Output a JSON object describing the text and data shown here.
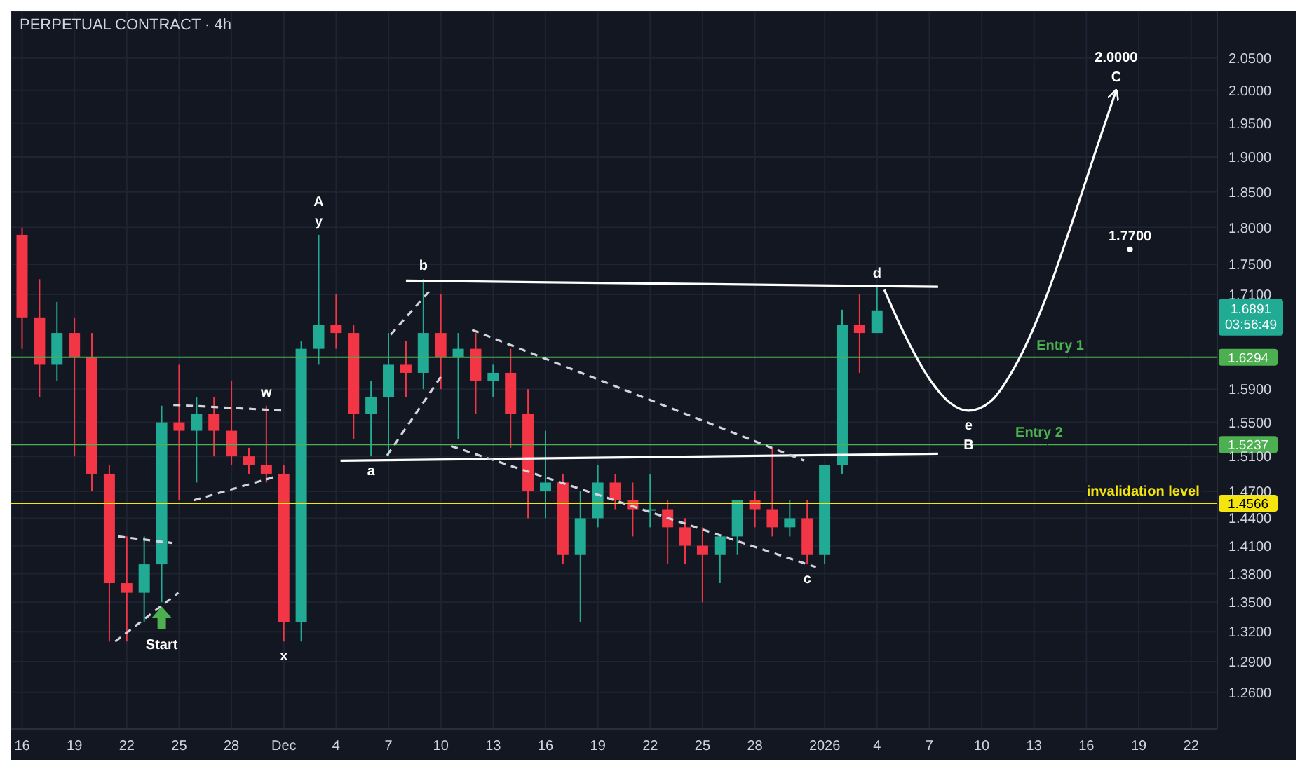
{
  "chart_data": {
    "type": "candlestick",
    "title": "PERPETUAL CONTRACT · 4h",
    "log": true,
    "grid": true,
    "x": [
      "2025-11-16",
      "2025-11-17",
      "2025-11-18",
      "2025-11-19",
      "2025-11-20",
      "2025-11-21",
      "2025-11-22",
      "2025-11-23",
      "2025-11-24",
      "2025-11-25",
      "2025-11-26",
      "2025-11-27",
      "2025-11-28",
      "2025-11-29",
      "2025-11-30",
      "2025-12-01",
      "2025-12-02",
      "2025-12-03",
      "2025-12-04",
      "2025-12-05",
      "2025-12-06",
      "2025-12-07",
      "2025-12-08",
      "2025-12-09",
      "2025-12-10",
      "2025-12-11",
      "2025-12-12",
      "2025-12-13",
      "2025-12-14",
      "2025-12-15",
      "2025-12-16",
      "2025-12-17",
      "2025-12-18",
      "2025-12-19",
      "2025-12-20",
      "2025-12-21",
      "2025-12-22",
      "2025-12-23",
      "2025-12-24",
      "2025-12-25",
      "2025-12-26",
      "2025-12-27",
      "2025-12-28",
      "2025-12-29",
      "2025-12-30",
      "2025-12-31",
      "2026-01-01",
      "2026-01-02",
      "2026-01-03",
      "2026-01-04"
    ],
    "ohlc": [
      [
        1.79,
        1.8,
        1.64,
        1.68
      ],
      [
        1.68,
        1.73,
        1.58,
        1.62
      ],
      [
        1.62,
        1.7,
        1.6,
        1.66
      ],
      [
        1.66,
        1.68,
        1.51,
        1.63
      ],
      [
        1.63,
        1.66,
        1.47,
        1.49
      ],
      [
        1.49,
        1.5,
        1.31,
        1.37
      ],
      [
        1.37,
        1.42,
        1.31,
        1.36
      ],
      [
        1.36,
        1.42,
        1.33,
        1.39
      ],
      [
        1.39,
        1.57,
        1.35,
        1.55
      ],
      [
        1.55,
        1.62,
        1.46,
        1.54
      ],
      [
        1.54,
        1.58,
        1.48,
        1.56
      ],
      [
        1.56,
        1.58,
        1.51,
        1.54
      ],
      [
        1.54,
        1.6,
        1.5,
        1.51
      ],
      [
        1.51,
        1.52,
        1.49,
        1.5
      ],
      [
        1.5,
        1.57,
        1.48,
        1.49
      ],
      [
        1.49,
        1.5,
        1.31,
        1.33
      ],
      [
        1.33,
        1.65,
        1.31,
        1.64
      ],
      [
        1.64,
        1.79,
        1.62,
        1.67
      ],
      [
        1.67,
        1.71,
        1.64,
        1.66
      ],
      [
        1.66,
        1.67,
        1.53,
        1.56
      ],
      [
        1.56,
        1.6,
        1.51,
        1.58
      ],
      [
        1.58,
        1.66,
        1.51,
        1.62
      ],
      [
        1.62,
        1.65,
        1.58,
        1.61
      ],
      [
        1.61,
        1.73,
        1.59,
        1.66
      ],
      [
        1.66,
        1.71,
        1.59,
        1.63
      ],
      [
        1.63,
        1.66,
        1.53,
        1.64
      ],
      [
        1.64,
        1.66,
        1.56,
        1.6
      ],
      [
        1.6,
        1.62,
        1.58,
        1.61
      ],
      [
        1.61,
        1.64,
        1.52,
        1.56
      ],
      [
        1.56,
        1.59,
        1.44,
        1.47
      ],
      [
        1.47,
        1.54,
        1.44,
        1.48
      ],
      [
        1.48,
        1.49,
        1.39,
        1.4
      ],
      [
        1.4,
        1.47,
        1.33,
        1.44
      ],
      [
        1.44,
        1.5,
        1.43,
        1.48
      ],
      [
        1.48,
        1.49,
        1.45,
        1.46
      ],
      [
        1.46,
        1.48,
        1.42,
        1.45
      ],
      [
        1.45,
        1.49,
        1.43,
        1.45
      ],
      [
        1.45,
        1.46,
        1.39,
        1.43
      ],
      [
        1.43,
        1.44,
        1.39,
        1.41
      ],
      [
        1.41,
        1.43,
        1.35,
        1.4
      ],
      [
        1.4,
        1.42,
        1.37,
        1.42
      ],
      [
        1.42,
        1.46,
        1.4,
        1.46
      ],
      [
        1.46,
        1.47,
        1.43,
        1.45
      ],
      [
        1.45,
        1.52,
        1.42,
        1.43
      ],
      [
        1.43,
        1.46,
        1.42,
        1.44
      ],
      [
        1.44,
        1.46,
        1.39,
        1.4
      ],
      [
        1.4,
        1.5,
        1.39,
        1.5
      ],
      [
        1.5,
        1.69,
        1.49,
        1.67
      ],
      [
        1.67,
        1.71,
        1.61,
        1.66
      ],
      [
        1.66,
        1.72,
        1.66,
        1.6891
      ]
    ],
    "series": [
      {
        "type": "line",
        "color": "#ffffff",
        "line_style": "solid",
        "x": [
          "2025-12-08",
          "2026-01-07T12:00"
        ],
        "values": [
          1.728,
          1.72
        ]
      },
      {
        "type": "line",
        "color": "#ffffff",
        "line_style": "solid",
        "x": [
          "2025-12-04T06:00",
          "2026-01-07T12:00"
        ],
        "values": [
          1.505,
          1.513
        ]
      },
      {
        "type": "line",
        "color": "#d1d4dc",
        "line_style": "dashed",
        "x": [
          "2025-12-11T19:00",
          "2025-12-30T20:00"
        ],
        "values": [
          1.664,
          1.505
        ]
      },
      {
        "type": "line",
        "color": "#d1d4dc",
        "line_style": "dashed",
        "x": [
          "2025-12-10T14:00",
          "2025-12-31T12:00"
        ],
        "values": [
          1.522,
          1.387
        ]
      },
      {
        "type": "line",
        "color": "#d1d4dc",
        "line_style": "dashed",
        "x": [
          "2025-11-21T12:00",
          "2025-11-24T14:00"
        ],
        "values": [
          1.42,
          1.413
        ]
      },
      {
        "type": "line",
        "color": "#d1d4dc",
        "line_style": "dashed",
        "x": [
          "2025-11-21T08:00",
          "2025-11-24T23:00"
        ],
        "values": [
          1.31,
          1.36
        ]
      },
      {
        "type": "line",
        "color": "#d1d4dc",
        "line_style": "dashed",
        "x": [
          "2025-11-24T16:00",
          "2025-12-01T00:00"
        ],
        "values": [
          1.571,
          1.564
        ]
      },
      {
        "type": "line",
        "color": "#d1d4dc",
        "line_style": "dashed",
        "x": [
          "2025-11-25T20:00",
          "2025-11-30T14:00"
        ],
        "values": [
          1.46,
          1.487
        ]
      },
      {
        "type": "line",
        "color": "#d1d4dc",
        "line_style": "dashed",
        "x": [
          "2025-12-06T22:00",
          "2025-12-10T00:00"
        ],
        "values": [
          1.511,
          1.605
        ]
      },
      {
        "type": "line",
        "color": "#d1d4dc",
        "line_style": "dashed",
        "x": [
          "2025-12-07T03:00",
          "2025-12-09T08:00"
        ],
        "values": [
          1.658,
          1.714
        ]
      },
      {
        "type": "line",
        "color": "#ffffff",
        "line_style": "solid",
        "x": [
          "2026-01-04T10:00",
          "2026-01-05T14:00",
          "2026-01-07T02:00",
          "2026-01-08T05:00",
          "2026-01-09T06:00",
          "2026-01-10T12:00",
          "2026-01-12T02:00",
          "2026-01-13T14:00",
          "2026-01-15T02:00",
          "2026-01-16T10:00",
          "2026-01-17T17:00"
        ],
        "values": [
          1.716,
          1.658,
          1.6,
          1.573,
          1.564,
          1.575,
          1.625,
          1.7,
          1.8,
          1.9,
          2.0
        ]
      },
      {
        "type": "scatter",
        "color": "#ffffff",
        "marker": "circle",
        "x": [
          "2026-01-18T12:00"
        ],
        "values": [
          1.77
        ]
      }
    ],
    "xlim": [
      "2025-11-15T09:00",
      "2026-01-23T12:00"
    ],
    "xticks": [
      {
        "value": "2025-11-16",
        "label": "16"
      },
      {
        "value": "2025-11-19",
        "label": "19"
      },
      {
        "value": "2025-11-22",
        "label": "22"
      },
      {
        "value": "2025-11-25",
        "label": "25"
      },
      {
        "value": "2025-11-28",
        "label": "28"
      },
      {
        "value": "2025-12-01",
        "label": "Dec"
      },
      {
        "value": "2025-12-04",
        "label": "4"
      },
      {
        "value": "2025-12-07",
        "label": "7"
      },
      {
        "value": "2025-12-10",
        "label": "10"
      },
      {
        "value": "2025-12-13",
        "label": "13"
      },
      {
        "value": "2025-12-16",
        "label": "16"
      },
      {
        "value": "2025-12-19",
        "label": "19"
      },
      {
        "value": "2025-12-22",
        "label": "22"
      },
      {
        "value": "2025-12-25",
        "label": "25"
      },
      {
        "value": "2025-12-28",
        "label": "28"
      },
      {
        "value": "2026-01-01",
        "label": "2026"
      },
      {
        "value": "2026-01-04",
        "label": "4"
      },
      {
        "value": "2026-01-07",
        "label": "7"
      },
      {
        "value": "2026-01-10",
        "label": "10"
      },
      {
        "value": "2026-01-13",
        "label": "13"
      },
      {
        "value": "2026-01-16",
        "label": "16"
      },
      {
        "value": "2026-01-19",
        "label": "19"
      },
      {
        "value": "2026-01-22",
        "label": "22"
      }
    ],
    "ylim": [
      1.225,
      2.125
    ],
    "yticks": [
      {
        "value": 1.26,
        "label": "1.2600"
      },
      {
        "value": 1.29,
        "label": "1.2900"
      },
      {
        "value": 1.32,
        "label": "1.3200"
      },
      {
        "value": 1.35,
        "label": "1.3500"
      },
      {
        "value": 1.38,
        "label": "1.3800"
      },
      {
        "value": 1.41,
        "label": "1.4100"
      },
      {
        "value": 1.44,
        "label": "1.4400"
      },
      {
        "value": 1.47,
        "label": "1.4700"
      },
      {
        "value": 1.51,
        "label": "1.5100"
      },
      {
        "value": 1.55,
        "label": "1.5500"
      },
      {
        "value": 1.59,
        "label": "1.5900"
      },
      {
        "value": 1.71,
        "label": "1.7100"
      },
      {
        "value": 1.75,
        "label": "1.7500"
      },
      {
        "value": 1.8,
        "label": "1.8000"
      },
      {
        "value": 1.85,
        "label": "1.8500"
      },
      {
        "value": 1.9,
        "label": "1.9000"
      },
      {
        "value": 1.95,
        "label": "1.9500"
      },
      {
        "value": 2.0,
        "label": "2.0000"
      },
      {
        "value": 2.05,
        "label": "2.0500"
      }
    ],
    "ref_lines": [
      {
        "axis": "y",
        "value": 1.6294,
        "label": "1.6294",
        "color": "#4caf50"
      },
      {
        "axis": "y",
        "value": 1.5237,
        "label": "1.5237",
        "color": "#4caf50"
      },
      {
        "axis": "y",
        "value": 1.4566,
        "label": "1.4566",
        "color": "#f5e50f"
      }
    ],
    "annotations": [
      {
        "text": "Start",
        "x": "2025-11-24",
        "y": 1.35
      },
      {
        "text": "y",
        "x": "2025-12-03",
        "y": 1.79
      },
      {
        "text": "A",
        "x": "2025-12-03",
        "y": 1.79
      },
      {
        "text": "w",
        "x": "2025-11-30",
        "y": 1.57
      },
      {
        "text": "x",
        "x": "2025-12-01",
        "y": 1.31
      },
      {
        "text": "b",
        "x": "2025-12-09",
        "y": 1.73
      },
      {
        "text": "a",
        "x": "2025-12-06",
        "y": 1.51
      },
      {
        "text": "c",
        "x": "2025-12-31",
        "y": 1.39
      },
      {
        "text": "d",
        "x": "2026-01-04",
        "y": 1.72
      },
      {
        "text": "e",
        "x": "2026-01-09T06:00",
        "y": 1.564
      },
      {
        "text": "B",
        "x": "2026-01-09T06:00",
        "y": 1.564
      },
      {
        "text": "C",
        "x": "2026-01-17T17:00",
        "y": 2.0
      },
      {
        "text": "2.0000",
        "x": "2026-01-17T17:00",
        "y": 2.0
      },
      {
        "text": "1.7700",
        "x": "2026-01-18T12:00",
        "y": 1.77
      },
      {
        "text": "Entry 1",
        "x": "2026-01-14T12:00",
        "y": 1.6294
      },
      {
        "text": "Entry 2",
        "x": "2026-01-13T07:00",
        "y": 1.5237
      },
      {
        "text": "invalidation level",
        "x": "2026-01-19T06:00",
        "y": 1.4566
      },
      "1.6891",
      "03:56:49"
    ]
  }
}
